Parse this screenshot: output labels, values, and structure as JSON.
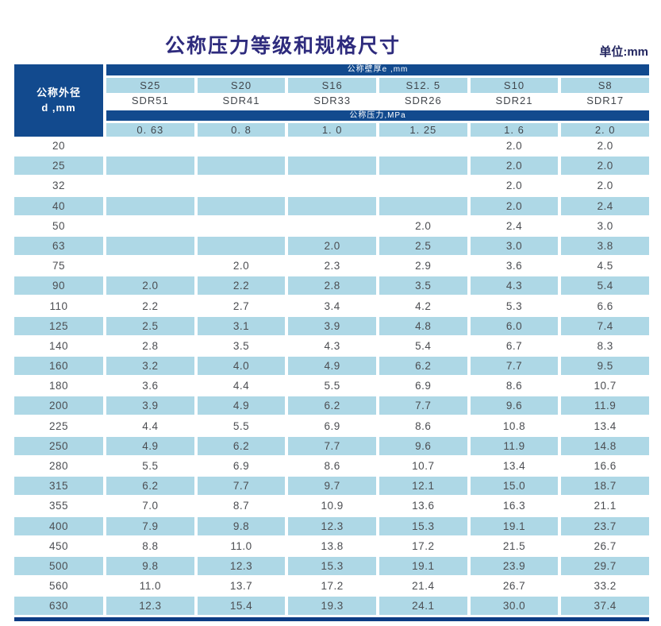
{
  "page": {
    "title": "公称压力等级和规格尺寸",
    "unit_label": "单位:mm"
  },
  "table": {
    "corner_line1": "公称外径",
    "corner_line2": "d ,mm",
    "wall_thickness_band": "公称壁厚e ,mm",
    "pressure_band": "公称压力,MPa",
    "series_labels": [
      "S25",
      "S20",
      "S16",
      "S12. 5",
      "S10",
      "S8"
    ],
    "sdr_labels": [
      "SDR51",
      "SDR41",
      "SDR33",
      "SDR26",
      "SDR21",
      "SDR17"
    ],
    "pressure_values": [
      "0. 63",
      "0. 8",
      "1. 0",
      "1. 25",
      "1. 6",
      "2. 0"
    ],
    "rows": [
      {
        "d": "20",
        "values": [
          "",
          "",
          "",
          "",
          "2.0",
          "2.0"
        ]
      },
      {
        "d": "25",
        "values": [
          "",
          "",
          "",
          "",
          "2.0",
          "2.0"
        ]
      },
      {
        "d": "32",
        "values": [
          "",
          "",
          "",
          "",
          "2.0",
          "2.0"
        ]
      },
      {
        "d": "40",
        "values": [
          "",
          "",
          "",
          "",
          "2.0",
          "2.4"
        ]
      },
      {
        "d": "50",
        "values": [
          "",
          "",
          "",
          "2.0",
          "2.4",
          "3.0"
        ]
      },
      {
        "d": "63",
        "values": [
          "",
          "",
          "2.0",
          "2.5",
          "3.0",
          "3.8"
        ]
      },
      {
        "d": "75",
        "values": [
          "",
          "2.0",
          "2.3",
          "2.9",
          "3.6",
          "4.5"
        ]
      },
      {
        "d": "90",
        "values": [
          "2.0",
          "2.2",
          "2.8",
          "3.5",
          "4.3",
          "5.4"
        ]
      },
      {
        "d": "110",
        "values": [
          "2.2",
          "2.7",
          "3.4",
          "4.2",
          "5.3",
          "6.6"
        ]
      },
      {
        "d": "125",
        "values": [
          "2.5",
          "3.1",
          "3.9",
          "4.8",
          "6.0",
          "7.4"
        ]
      },
      {
        "d": "140",
        "values": [
          "2.8",
          "3.5",
          "4.3",
          "5.4",
          "6.7",
          "8.3"
        ]
      },
      {
        "d": "160",
        "values": [
          "3.2",
          "4.0",
          "4.9",
          "6.2",
          "7.7",
          "9.5"
        ]
      },
      {
        "d": "180",
        "values": [
          "3.6",
          "4.4",
          "5.5",
          "6.9",
          "8.6",
          "10.7"
        ]
      },
      {
        "d": "200",
        "values": [
          "3.9",
          "4.9",
          "6.2",
          "7.7",
          "9.6",
          "11.9"
        ]
      },
      {
        "d": "225",
        "values": [
          "4.4",
          "5.5",
          "6.9",
          "8.6",
          "10.8",
          "13.4"
        ]
      },
      {
        "d": "250",
        "values": [
          "4.9",
          "6.2",
          "7.7",
          "9.6",
          "11.9",
          "14.8"
        ]
      },
      {
        "d": "280",
        "values": [
          "5.5",
          "6.9",
          "8.6",
          "10.7",
          "13.4",
          "16.6"
        ]
      },
      {
        "d": "315",
        "values": [
          "6.2",
          "7.7",
          "9.7",
          "12.1",
          "15.0",
          "18.7"
        ]
      },
      {
        "d": "355",
        "values": [
          "7.0",
          "8.7",
          "10.9",
          "13.6",
          "16.3",
          "21.1"
        ]
      },
      {
        "d": "400",
        "values": [
          "7.9",
          "9.8",
          "12.3",
          "15.3",
          "19.1",
          "23.7"
        ]
      },
      {
        "d": "450",
        "values": [
          "8.8",
          "11.0",
          "13.8",
          "17.2",
          "21.5",
          "26.7"
        ]
      },
      {
        "d": "500",
        "values": [
          "9.8",
          "12.3",
          "15.3",
          "19.1",
          "23.9",
          "29.7"
        ]
      },
      {
        "d": "560",
        "values": [
          "11.0",
          "13.7",
          "17.2",
          "21.4",
          "26.7",
          "33.2"
        ]
      },
      {
        "d": "630",
        "values": [
          "12.3",
          "15.4",
          "19.3",
          "24.1",
          "30.0",
          "37.4"
        ]
      }
    ]
  },
  "colors": {
    "dark_blue": "#124a8e",
    "light_blue": "#aed8e6",
    "bottom_bar": "#0d3c84",
    "title_color": "#2e2b7d",
    "unit_color": "#22255f",
    "text_color": "#4c4e52"
  }
}
